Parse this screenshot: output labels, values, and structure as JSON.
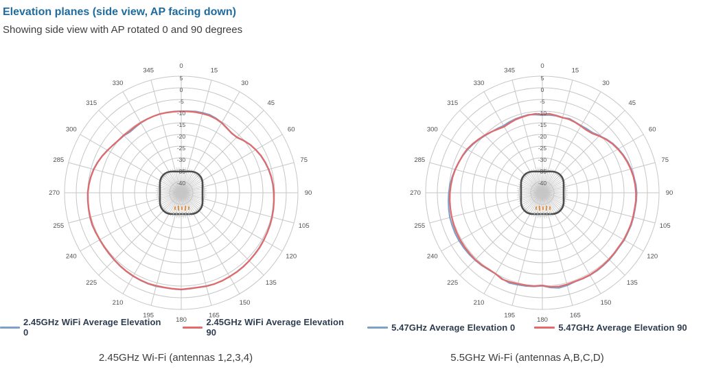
{
  "header": {
    "title": "Elevation planes (side view, AP facing down)",
    "subtitle": "Showing side view with AP rotated 0 and 90 degrees"
  },
  "style": {
    "title_color": "#1f6b9e",
    "subtitle_color": "#3d3d3d",
    "grid_color": "#c6c6c6",
    "axis_label_color": "#4f4f4f",
    "legend_text_color": "#2e3c50",
    "caption_color": "#3c3c3c",
    "series_blue": "#7da0c9",
    "series_red": "#e26a6a",
    "ap_outline_color": "#4d4d4d",
    "ap_led_color": "#e8923f",
    "ap_hatch_color": "#c0c0c0"
  },
  "chart_data": [
    {
      "type": "line",
      "projection": "polar",
      "caption": "2.45GHz Wi-Fi (antennas 1,2,3,4)",
      "center_icon": "access-point-top-view",
      "angle_ticks_deg": [
        0,
        15,
        30,
        45,
        60,
        75,
        90,
        105,
        120,
        135,
        150,
        165,
        180,
        195,
        210,
        225,
        240,
        255,
        270,
        285,
        300,
        315,
        330,
        345
      ],
      "radial_ticks_db": [
        5,
        0,
        -5,
        -10,
        -15,
        -20,
        -25,
        -30,
        -35,
        -40
      ],
      "rlim": [
        -45,
        5
      ],
      "clockwise_from_top": true,
      "angles_deg": [
        0,
        5,
        10,
        15,
        20,
        25,
        30,
        35,
        40,
        45,
        50,
        55,
        60,
        65,
        70,
        75,
        80,
        85,
        90,
        95,
        100,
        105,
        110,
        115,
        120,
        125,
        130,
        135,
        140,
        145,
        150,
        155,
        160,
        165,
        170,
        175,
        180,
        185,
        190,
        195,
        200,
        205,
        210,
        215,
        220,
        225,
        230,
        235,
        240,
        245,
        250,
        255,
        260,
        265,
        270,
        275,
        280,
        285,
        290,
        295,
        300,
        305,
        310,
        315,
        320,
        325,
        330,
        335,
        340,
        345,
        350,
        355
      ],
      "series": [
        {
          "name": "2.45GHz WiFi Average Elevation 0",
          "color": "#7da0c9",
          "values": [
            -10.0,
            -9.9,
            -9.6,
            -9.5,
            -9.4,
            -9.8,
            -10.3,
            -11.0,
            -11.6,
            -11.4,
            -10.2,
            -9.0,
            -8.2,
            -7.4,
            -6.8,
            -6.3,
            -5.9,
            -5.6,
            -5.4,
            -5.2,
            -5.0,
            -4.8,
            -4.6,
            -4.4,
            -4.3,
            -4.1,
            -4.0,
            -3.8,
            -3.7,
            -3.6,
            -3.5,
            -3.4,
            -3.4,
            -3.6,
            -3.8,
            -3.7,
            -3.5,
            -3.6,
            -3.7,
            -3.5,
            -3.5,
            -3.6,
            -3.7,
            -3.9,
            -4.1,
            -4.3,
            -4.5,
            -4.6,
            -4.7,
            -4.6,
            -4.4,
            -4.5,
            -4.7,
            -4.8,
            -4.9,
            -5.2,
            -5.6,
            -6.1,
            -6.8,
            -7.6,
            -8.5,
            -9.4,
            -10.0,
            -10.3,
            -10.9,
            -10.7,
            -10.4,
            -10.2,
            -10.1,
            -10.0,
            -10.0,
            -10.0
          ]
        },
        {
          "name": "2.45GHz WiFi Average Elevation 90",
          "color": "#e26a6a",
          "values": [
            -10.1,
            -10.0,
            -9.9,
            -9.9,
            -9.8,
            -10.0,
            -10.4,
            -11.1,
            -11.5,
            -11.3,
            -10.1,
            -9.0,
            -8.1,
            -7.3,
            -6.7,
            -6.2,
            -5.8,
            -5.5,
            -5.3,
            -5.1,
            -4.9,
            -4.7,
            -4.5,
            -4.4,
            -4.2,
            -4.0,
            -3.9,
            -3.8,
            -3.6,
            -3.5,
            -3.5,
            -3.4,
            -3.4,
            -3.5,
            -3.8,
            -3.8,
            -3.6,
            -3.7,
            -3.8,
            -3.7,
            -3.6,
            -3.7,
            -3.8,
            -4.0,
            -4.2,
            -4.4,
            -4.6,
            -4.7,
            -4.7,
            -4.6,
            -4.5,
            -4.6,
            -4.7,
            -4.9,
            -5.0,
            -5.3,
            -5.7,
            -6.2,
            -6.9,
            -7.7,
            -8.6,
            -9.3,
            -9.9,
            -10.1,
            -10.5,
            -10.4,
            -10.3,
            -10.2,
            -10.1,
            -10.0,
            -10.1,
            -10.1
          ]
        }
      ]
    },
    {
      "type": "line",
      "projection": "polar",
      "caption": "5.5GHz Wi-Fi (antennas A,B,C,D)",
      "center_icon": "access-point-top-view",
      "angle_ticks_deg": [
        0,
        15,
        30,
        45,
        60,
        75,
        90,
        105,
        120,
        135,
        150,
        165,
        180,
        195,
        210,
        225,
        240,
        255,
        270,
        285,
        300,
        315,
        330,
        345
      ],
      "radial_ticks_db": [
        5,
        0,
        -5,
        -10,
        -15,
        -20,
        -25,
        -30,
        -35,
        -40
      ],
      "rlim": [
        -45,
        5
      ],
      "clockwise_from_top": true,
      "angles_deg": [
        0,
        5,
        10,
        15,
        20,
        25,
        30,
        35,
        40,
        45,
        50,
        55,
        60,
        65,
        70,
        75,
        80,
        85,
        90,
        95,
        100,
        105,
        110,
        115,
        120,
        125,
        130,
        135,
        140,
        145,
        150,
        155,
        160,
        165,
        170,
        175,
        180,
        185,
        190,
        195,
        200,
        205,
        210,
        215,
        220,
        225,
        230,
        235,
        240,
        245,
        250,
        255,
        260,
        265,
        270,
        275,
        280,
        285,
        290,
        295,
        300,
        305,
        310,
        315,
        320,
        325,
        330,
        335,
        340,
        345,
        350,
        355
      ],
      "series": [
        {
          "name": "5.47GHz Average Elevation 0",
          "color": "#7da0c9",
          "values": [
            -11.7,
            -11.5,
            -11.5,
            -11.7,
            -11.2,
            -11.6,
            -11.8,
            -11.6,
            -11.4,
            -10.4,
            -9.2,
            -8.2,
            -7.4,
            -6.7,
            -6.1,
            -5.6,
            -5.2,
            -4.8,
            -4.6,
            -4.6,
            -4.7,
            -4.6,
            -4.5,
            -4.6,
            -4.5,
            -4.7,
            -4.6,
            -4.4,
            -4.3,
            -4.2,
            -4.2,
            -4.3,
            -4.4,
            -3.9,
            -3.6,
            -4.2,
            -5.1,
            -4.7,
            -4.4,
            -4.2,
            -3.8,
            -4.3,
            -4.9,
            -4.8,
            -4.4,
            -4.2,
            -4.0,
            -3.9,
            -3.8,
            -3.8,
            -3.9,
            -4.0,
            -4.3,
            -4.6,
            -4.9,
            -5.3,
            -5.8,
            -6.3,
            -6.8,
            -7.4,
            -8.0,
            -8.7,
            -9.5,
            -10.3,
            -11.0,
            -11.4,
            -11.8,
            -11.5,
            -11.3,
            -11.2,
            -11.0,
            -11.4
          ]
        },
        {
          "name": "5.47GHz Average Elevation 90",
          "color": "#e26a6a",
          "values": [
            -11.4,
            -11.0,
            -11.3,
            -11.6,
            -11.5,
            -11.7,
            -12.0,
            -12.2,
            -11.8,
            -10.6,
            -9.4,
            -8.4,
            -7.6,
            -6.9,
            -6.3,
            -5.8,
            -5.4,
            -5.1,
            -4.9,
            -4.8,
            -4.9,
            -4.8,
            -4.7,
            -4.8,
            -4.7,
            -4.9,
            -4.8,
            -4.6,
            -4.5,
            -4.4,
            -4.3,
            -4.4,
            -4.5,
            -4.3,
            -4.2,
            -4.5,
            -5.3,
            -4.9,
            -4.7,
            -4.6,
            -4.3,
            -4.1,
            -4.9,
            -5.0,
            -4.6,
            -4.4,
            -4.4,
            -4.4,
            -4.4,
            -4.5,
            -4.6,
            -4.8,
            -5.0,
            -5.2,
            -5.4,
            -5.7,
            -6.0,
            -6.4,
            -6.9,
            -7.3,
            -7.7,
            -8.5,
            -9.3,
            -10.1,
            -10.9,
            -11.7,
            -12.3,
            -12.0,
            -11.6,
            -11.4,
            -11.2,
            -11.0
          ]
        }
      ]
    }
  ]
}
